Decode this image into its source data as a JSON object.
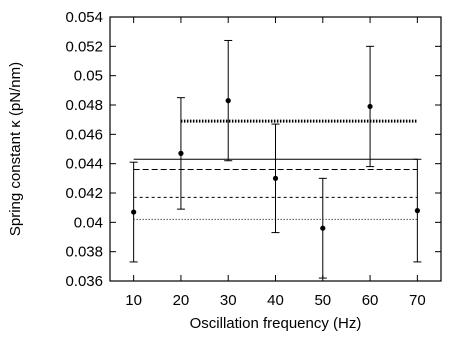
{
  "chart_data": {
    "type": "scatter",
    "title": "",
    "xlabel": "Oscillation frequency (Hz)",
    "ylabel": "Spring constant κ (pN/nm)",
    "xlim": [
      5,
      75
    ],
    "ylim": [
      0.036,
      0.054
    ],
    "x_ticks": [
      10,
      20,
      30,
      40,
      50,
      60,
      70
    ],
    "x_tick_labels": [
      "10",
      "20",
      "30",
      "40",
      "50",
      "60",
      "70"
    ],
    "y_ticks": [
      0.036,
      0.038,
      0.04,
      0.042,
      0.044,
      0.046,
      0.048,
      0.05,
      0.052,
      0.054
    ],
    "y_tick_labels": [
      "0.036",
      "0.038",
      "0.04",
      "0.042",
      "0.044",
      "0.046",
      "0.048",
      "0.05",
      "0.052",
      "0.054"
    ],
    "grid": false,
    "series": [
      {
        "points": [
          {
            "x": 10,
            "y": 0.0407,
            "yerr_low": 0.0373,
            "yerr_high": 0.0441
          },
          {
            "x": 20,
            "y": 0.0447,
            "yerr_low": 0.0409,
            "yerr_high": 0.0485
          },
          {
            "x": 30,
            "y": 0.0483,
            "yerr_low": 0.0442,
            "yerr_high": 0.0524
          },
          {
            "x": 40,
            "y": 0.043,
            "yerr_low": 0.0393,
            "yerr_high": 0.0467
          },
          {
            "x": 50,
            "y": 0.0396,
            "yerr_low": 0.0362,
            "yerr_high": 0.043
          },
          {
            "x": 60,
            "y": 0.0479,
            "yerr_low": 0.0438,
            "yerr_high": 0.052
          },
          {
            "x": 70,
            "y": 0.0408,
            "yerr_low": 0.0373,
            "yerr_high": 0.0443
          }
        ]
      }
    ],
    "reference_lines": [
      {
        "y": 0.0469,
        "x_start": 20,
        "x_end": 70,
        "style": "heavy-dotted"
      },
      {
        "y": 0.0443,
        "x_start": 10,
        "x_end": 70,
        "style": "solid"
      },
      {
        "y": 0.0436,
        "x_start": 10,
        "x_end": 70,
        "style": "dashed"
      },
      {
        "y": 0.0417,
        "x_start": 10,
        "x_end": 70,
        "style": "short-dashed"
      },
      {
        "y": 0.0402,
        "x_start": 10,
        "x_end": 70,
        "style": "dotted"
      }
    ],
    "colors": {
      "marks": "#000000",
      "background": "#ffffff"
    }
  }
}
